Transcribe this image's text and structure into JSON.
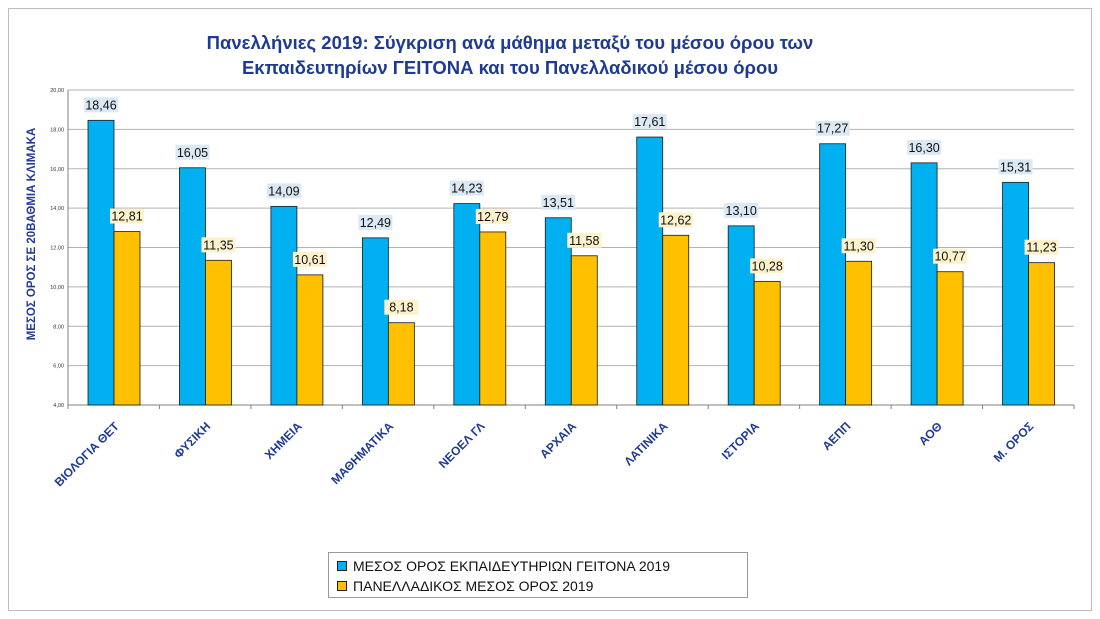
{
  "chart_data": {
    "type": "bar",
    "title_line1": "Πανελλήνιες 2019: Σύγκριση ανά μάθημα μεταξύ του μέσου όρου των",
    "title_line2": "Εκπαιδευτηρίων ΓΕΙΤΟΝΑ και του Πανελλαδικού μέσου όρου",
    "ylabel": "ΜΕΣΟΣ ΟΡΟΣ ΣΕ 20ΒΑΘΜΙΑ ΚΛΙΜΑΚΑ",
    "xlabel": "",
    "ylim": [
      4,
      20
    ],
    "yticks": [
      "4,00",
      "6,00",
      "8,00",
      "10,00",
      "12,00",
      "14,00",
      "16,00",
      "18,00",
      "20,00"
    ],
    "grid": true,
    "legend_position": "bottom",
    "categories": [
      "ΒΙΟΛΟΓΙΑ ΘΕΤ",
      "ΦΥΣΙΚΗ",
      "ΧΗΜΕΙΑ",
      "ΜΑΘΗΜΑΤΙΚΑ",
      "ΝΕΟΕΛ ΓΛ",
      "ΑΡΧΑΙΑ",
      "ΛΑΤΙΝΙΚΑ",
      "ΙΣΤΟΡΙΑ",
      "ΑΕΠΠ",
      "ΑΟΘ",
      "Μ. ΟΡΟΣ"
    ],
    "series": [
      {
        "name": "ΜΕΣΟΣ ΟΡΟΣ ΕΚΠΑΙΔΕΥΤΗΡΙΩΝ ΓΕΙΤΟΝΑ  2019",
        "color": "#00b0f0",
        "values": [
          18.46,
          16.05,
          14.09,
          12.49,
          14.23,
          13.51,
          17.61,
          13.1,
          17.27,
          16.3,
          15.31
        ],
        "labels": [
          "18,46",
          "16,05",
          "14,09",
          "12,49",
          "14,23",
          "13,51",
          "17,61",
          "13,10",
          "17,27",
          "16,30",
          "15,31"
        ],
        "label_bg": "#dbe9f5"
      },
      {
        "name": "ΠΑΝΕΛΛΑΔΙΚΟΣ ΜΕΣΟΣ ΟΡΟΣ 2019",
        "color": "#ffc000",
        "values": [
          12.81,
          11.35,
          10.61,
          8.18,
          12.79,
          11.58,
          12.62,
          10.28,
          11.3,
          10.77,
          11.23
        ],
        "labels": [
          "12,81",
          "11,35",
          "10,61",
          "8,18",
          "12,79",
          "11,58",
          "12,62",
          "10,28",
          "11,30",
          "10,77",
          "11,23"
        ],
        "label_bg": "#fdf2cc"
      }
    ]
  },
  "colors": {
    "title": "#1f3a93",
    "axis_label": "#1f3a93",
    "grid": "#b3b3b3"
  }
}
